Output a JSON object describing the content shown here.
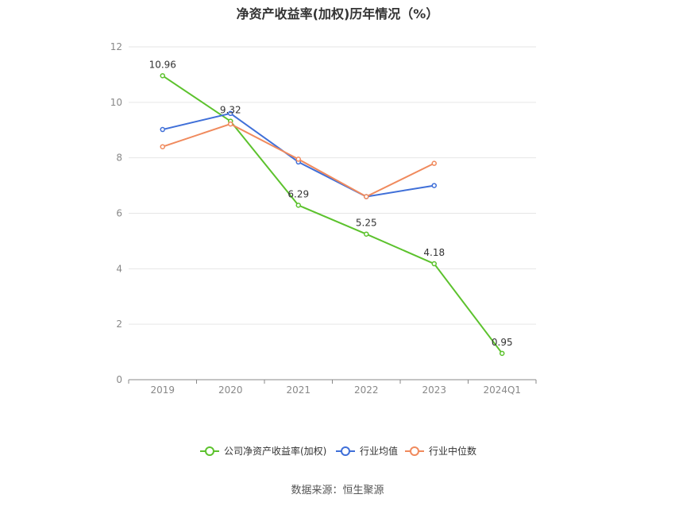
{
  "chart_data": {
    "type": "line",
    "title": "净资产收益率(加权)历年情况（%）",
    "categories": [
      "2019",
      "2020",
      "2021",
      "2022",
      "2023",
      "2024Q1"
    ],
    "ylim": [
      0,
      12
    ],
    "yticks": [
      0,
      2,
      4,
      6,
      8,
      10,
      12
    ],
    "grid": true,
    "legend_position": "bottom",
    "series": [
      {
        "name": "公司净资产收益率(加权)",
        "color": "#5cc22d",
        "values": [
          10.96,
          9.32,
          6.29,
          5.25,
          4.18,
          0.95
        ],
        "labels": [
          "10.96",
          "9.32",
          "6.29",
          "5.25",
          "4.18",
          "0.95"
        ]
      },
      {
        "name": "行业均值",
        "color": "#3f6fd8",
        "values": [
          9.02,
          9.6,
          7.85,
          6.6,
          7.0,
          null
        ]
      },
      {
        "name": "行业中位数",
        "color": "#f08a5d",
        "values": [
          8.4,
          9.22,
          7.95,
          6.6,
          7.8,
          null
        ]
      }
    ]
  },
  "source": "数据来源：恒生聚源"
}
